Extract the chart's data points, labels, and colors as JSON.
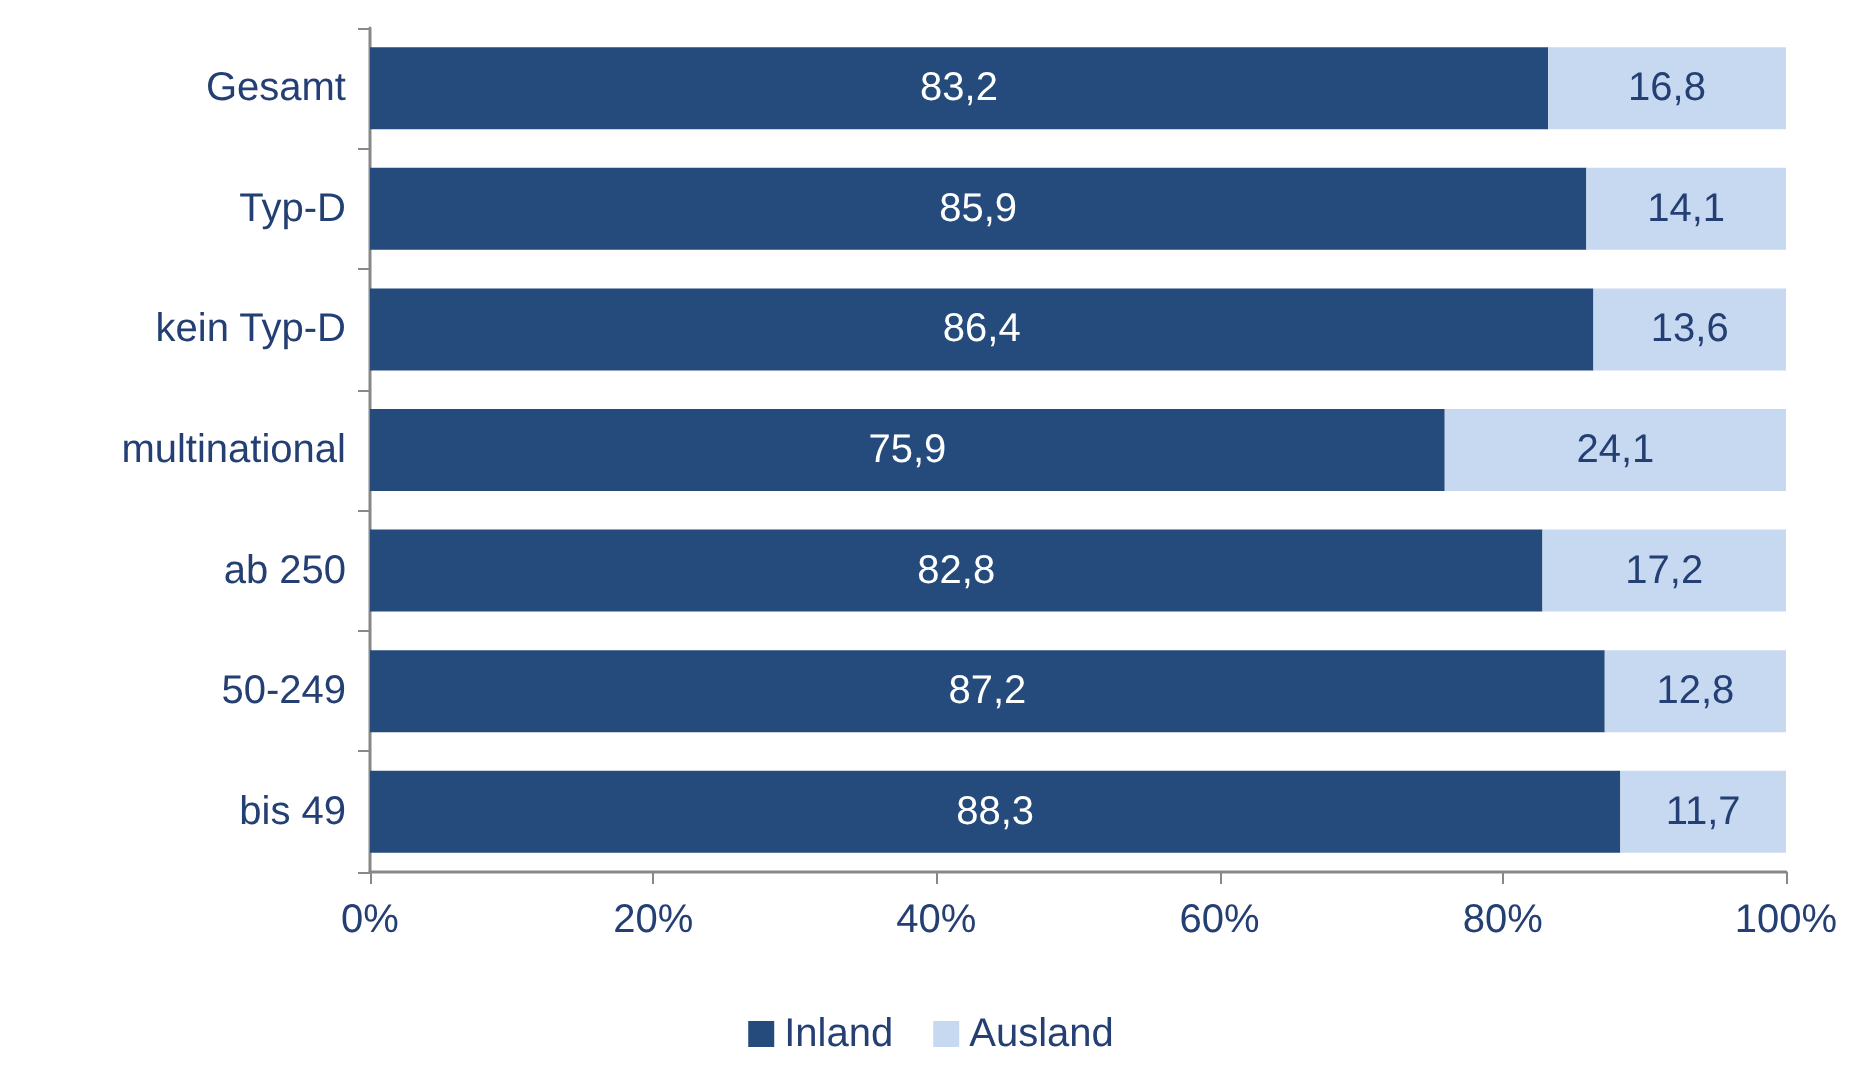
{
  "chart_data": {
    "type": "bar",
    "orientation": "horizontal",
    "stacked": true,
    "categories": [
      "Gesamt",
      "Typ-D",
      "kein Typ-D",
      "multinational",
      "ab 250",
      "50-249",
      "bis 49"
    ],
    "series": [
      {
        "name": "Inland",
        "color": "#254a7c",
        "values": [
          83.2,
          85.9,
          86.4,
          75.9,
          82.8,
          87.2,
          88.3
        ],
        "value_labels": [
          "83,2",
          "85,9",
          "86,4",
          "75,9",
          "82,8",
          "87,2",
          "88,3"
        ]
      },
      {
        "name": "Ausland",
        "color": "#c6d9f1",
        "values": [
          16.8,
          14.1,
          13.6,
          24.1,
          17.2,
          12.8,
          11.7
        ],
        "value_labels": [
          "16,8",
          "14,1",
          "13,6",
          "24,1",
          "17,2",
          "12,8",
          "11,7"
        ]
      }
    ],
    "xlim": [
      0,
      100
    ],
    "xticks": [
      {
        "value": 0,
        "label": "0%"
      },
      {
        "value": 20,
        "label": "20%"
      },
      {
        "value": 40,
        "label": "40%"
      },
      {
        "value": 60,
        "label": "60%"
      },
      {
        "value": 80,
        "label": "80%"
      },
      {
        "value": 100,
        "label": "100%"
      }
    ],
    "grid": false,
    "legend": "bottom"
  }
}
